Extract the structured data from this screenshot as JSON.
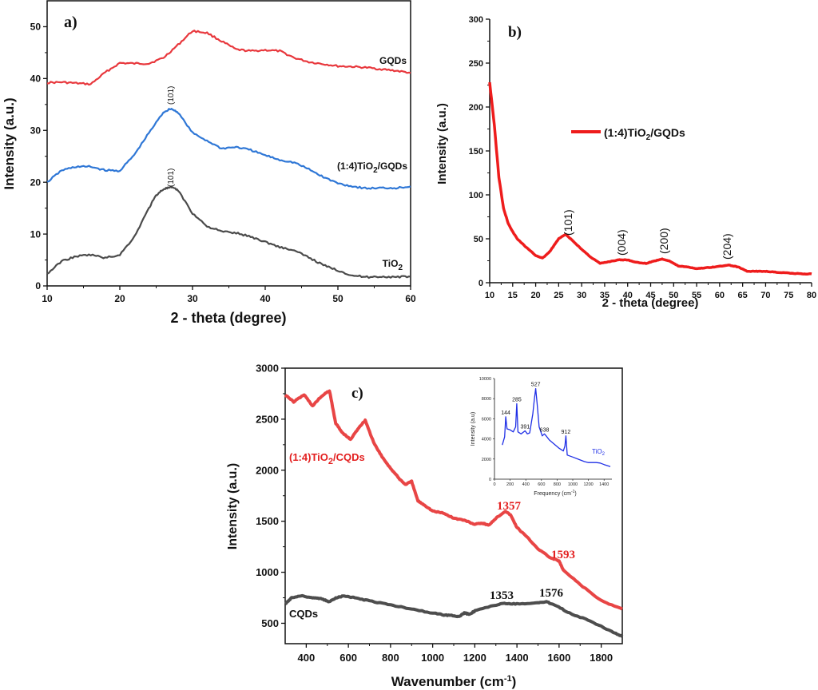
{
  "chart_data": [
    {
      "type": "line",
      "panel_label": "a)",
      "xlabel": "2 - theta (degree)",
      "ylabel": "Intensity (a.u.)",
      "xlim": [
        10,
        60
      ],
      "ylim": [
        0,
        55
      ],
      "xticks": [
        10,
        20,
        30,
        40,
        50,
        60
      ],
      "yticks": [
        0,
        10,
        20,
        30,
        40,
        50
      ],
      "grid": false,
      "annotations": [
        {
          "text": "(101)",
          "x": 27,
          "y": 35,
          "rotated": true
        },
        {
          "text": "(101)",
          "x": 27,
          "y": 20,
          "rotated": true
        }
      ],
      "series": [
        {
          "name": "GQDs",
          "color": "#e8383d",
          "x": [
            10,
            12,
            14,
            16,
            18,
            20,
            22,
            24,
            26,
            28,
            30,
            32,
            34,
            36,
            38,
            40,
            42,
            44,
            46,
            48,
            50,
            52,
            54,
            56,
            58,
            60
          ],
          "y": [
            39.2,
            39.3,
            39.1,
            38.9,
            41.2,
            43,
            42.9,
            42.9,
            44,
            46.5,
            49.2,
            48.8,
            47.2,
            45.6,
            45.3,
            45.5,
            45.3,
            44,
            43.2,
            42.8,
            42.4,
            42.3,
            42.1,
            41.8,
            41.5,
            41.1
          ]
        },
        {
          "name": "(1:4)TiO2/GQDs",
          "color": "#2f77d6",
          "x": [
            10,
            12,
            14,
            16,
            18,
            20,
            22,
            24,
            26,
            27,
            28,
            30,
            32,
            34,
            36,
            38,
            40,
            42,
            44,
            46,
            48,
            50,
            52,
            54,
            56,
            58,
            60
          ],
          "y": [
            20,
            22.3,
            23,
            23,
            22.3,
            22.2,
            25.3,
            29.5,
            33.5,
            34.2,
            33.5,
            29.5,
            28,
            26.5,
            26.8,
            26.2,
            25.2,
            24.3,
            23.8,
            22.5,
            21,
            19.8,
            19.2,
            18.8,
            18.9,
            18.9,
            19.2
          ]
        },
        {
          "name": "TiO2",
          "color": "#4a4a4a",
          "x": [
            10,
            12,
            14,
            16,
            18,
            20,
            22,
            24,
            25,
            26,
            27,
            28,
            30,
            32,
            34,
            36,
            38,
            40,
            42,
            44,
            46,
            48,
            50,
            52,
            54,
            56,
            58,
            60
          ],
          "y": [
            2.3,
            4.8,
            5.7,
            6,
            5.4,
            6,
            9.5,
            15,
            17.5,
            18.7,
            19,
            18.5,
            14,
            11.5,
            10.5,
            10.2,
            9.5,
            8.5,
            7.5,
            6.8,
            5.5,
            4,
            3,
            2,
            1.7,
            1.8,
            1.7,
            1.8
          ]
        }
      ],
      "series_labels": [
        "GQDs",
        "(1:4)TiO2/GQDs",
        "TiO2"
      ]
    },
    {
      "type": "line",
      "panel_label": "b)",
      "xlabel": "2 - theta (degree)",
      "ylabel": "Intensity (a.u.)",
      "xlim": [
        10,
        80
      ],
      "ylim": [
        0,
        300
      ],
      "xticks": [
        10,
        15,
        20,
        25,
        30,
        35,
        40,
        45,
        50,
        55,
        60,
        65,
        70,
        75,
        80
      ],
      "yticks": [
        0,
        50,
        100,
        150,
        200,
        250,
        300
      ],
      "grid": false,
      "legend": {
        "position": "center-right",
        "entries": [
          "(1:4)TiO2/GQDs"
        ]
      },
      "annotations": [
        {
          "text": "(101)",
          "x": 26.5,
          "y": 55
        },
        {
          "text": "(004)",
          "x": 38,
          "y": 27
        },
        {
          "text": "(200)",
          "x": 47.5,
          "y": 27
        },
        {
          "text": "(204)",
          "x": 61,
          "y": 20
        }
      ],
      "series": [
        {
          "name": "(1:4)TiO2/GQDs",
          "color": "#ee1c1c",
          "x": [
            10,
            11,
            12,
            13,
            14,
            15,
            16,
            18,
            20,
            21.5,
            23,
            25,
            26.5,
            28,
            30,
            32,
            34,
            36,
            38,
            40,
            42,
            44,
            46,
            47.5,
            49,
            51,
            53,
            55,
            57,
            59,
            62,
            64,
            66,
            68,
            70,
            72,
            75,
            78,
            80
          ],
          "y": [
            228,
            180,
            120,
            85,
            68,
            58,
            50,
            40,
            31,
            28,
            35,
            50,
            55,
            48,
            38,
            29,
            22,
            24,
            26,
            26,
            23,
            22,
            25,
            27,
            25,
            19,
            18,
            16,
            17,
            18,
            20,
            18,
            13,
            13,
            13,
            12,
            11,
            10,
            10
          ]
        }
      ]
    },
    {
      "type": "line",
      "panel_label": "c)",
      "xlabel": "Wavenumber (cm⁻¹)",
      "ylabel": "Intensity (a.u.)",
      "xlim": [
        300,
        1900
      ],
      "ylim": [
        300,
        3000
      ],
      "xticks": [
        400,
        600,
        800,
        1000,
        1200,
        1400,
        1600,
        1800
      ],
      "yticks": [
        500,
        1000,
        1500,
        2000,
        2500,
        3000
      ],
      "grid": false,
      "annotations": [
        {
          "text": "1357",
          "x": 1357,
          "y": 1640,
          "color": "#e32020"
        },
        {
          "text": "1593",
          "x": 1593,
          "y": 1180,
          "color": "#e32020"
        },
        {
          "text": "1353",
          "x": 1353,
          "y": 780,
          "color": "#111111"
        },
        {
          "text": "1576",
          "x": 1576,
          "y": 790,
          "color": "#111111"
        }
      ],
      "series": [
        {
          "name": "(1:4)TiO2/CQDs",
          "color": "#e84545",
          "x": [
            300,
            340,
            390,
            430,
            470,
            510,
            540,
            570,
            610,
            650,
            680,
            720,
            760,
            800,
            840,
            870,
            900,
            930,
            960,
            1000,
            1050,
            1100,
            1150,
            1200,
            1240,
            1265,
            1300,
            1345,
            1370,
            1400,
            1450,
            1500,
            1560,
            1600,
            1620,
            1700,
            1800,
            1900
          ],
          "y": [
            2740,
            2670,
            2740,
            2630,
            2720,
            2780,
            2460,
            2370,
            2300,
            2420,
            2490,
            2270,
            2130,
            2020,
            1920,
            1860,
            1890,
            1700,
            1660,
            1600,
            1580,
            1530,
            1510,
            1470,
            1480,
            1460,
            1530,
            1600,
            1560,
            1440,
            1340,
            1230,
            1140,
            1110,
            1020,
            880,
            720,
            640
          ]
        },
        {
          "name": "CQDs",
          "color": "#4d4d4d",
          "x": [
            300,
            330,
            380,
            430,
            470,
            510,
            540,
            580,
            630,
            700,
            800,
            900,
            1000,
            1060,
            1100,
            1125,
            1150,
            1175,
            1200,
            1300,
            1340,
            1400,
            1500,
            1540,
            1580,
            1650,
            1750,
            1850,
            1900
          ],
          "y": [
            690,
            750,
            770,
            750,
            740,
            710,
            750,
            770,
            750,
            720,
            680,
            640,
            600,
            580,
            575,
            565,
            600,
            590,
            620,
            680,
            695,
            690,
            700,
            710,
            680,
            600,
            520,
            420,
            370
          ]
        }
      ],
      "series_labels": [
        "(1:4)TiO2/CQDs",
        "CQDs"
      ],
      "inset": {
        "xlabel": "Frequency (cm⁻¹)",
        "ylabel": "Intensity (a.u)",
        "xlim": [
          0,
          1500
        ],
        "ylim": [
          0,
          10000
        ],
        "xticks": [
          0,
          200,
          400,
          600,
          800,
          1000,
          1200,
          1400
        ],
        "yticks": [
          0,
          2000,
          4000,
          6000,
          8000,
          10000
        ],
        "label": "TiO2",
        "peak_labels": [
          {
            "text": "144",
            "x": 144,
            "y": 6200
          },
          {
            "text": "285",
            "x": 285,
            "y": 7500
          },
          {
            "text": "391",
            "x": 391,
            "y": 4800
          },
          {
            "text": "527",
            "x": 527,
            "y": 9000
          },
          {
            "text": "638",
            "x": 638,
            "y": 4500
          },
          {
            "text": "912",
            "x": 912,
            "y": 4300
          }
        ],
        "series": [
          {
            "name": "TiO2",
            "color": "#1f2fe6",
            "x": [
              100,
              130,
              144,
              160,
              200,
              240,
              270,
              285,
              300,
              340,
              391,
              420,
              450,
              490,
              510,
              527,
              545,
              570,
              610,
              638,
              660,
              700,
              760,
              820,
              880,
              900,
              912,
              930,
              1000,
              1100,
              1150,
              1200,
              1300,
              1350,
              1400,
              1480
            ],
            "y": [
              3400,
              4200,
              6200,
              5000,
              4900,
              4700,
              5200,
              7500,
              4700,
              4500,
              4800,
              4500,
              4600,
              6500,
              8000,
              9000,
              7500,
              5200,
              4300,
              4500,
              4300,
              3900,
              3500,
              3100,
              2800,
              3300,
              4300,
              2400,
              2200,
              1900,
              1750,
              1650,
              1650,
              1600,
              1450,
              1250
            ]
          }
        ]
      }
    }
  ],
  "labels": {
    "a_panel": "a)",
    "a_ylabel": "Intensity (a.u.)",
    "a_xlabel": "2 - theta (degree)",
    "a_gqds": "GQDs",
    "a_composite_main": "(1:4)TiO",
    "a_composite_sub": "2",
    "a_composite_tail": "/GQDs",
    "a_tio2_main": "TiO",
    "a_tio2_sub": "2",
    "a_peak": "(101)",
    "b_panel": "b)",
    "b_ylabel": "Intensity (a.u.)",
    "b_xlabel": "2 - theta (degree)",
    "b_legend_main": "(1:4)TiO",
    "b_legend_sub": "2",
    "b_legend_tail": "/GQDs",
    "b_p101": "(101)",
    "b_p004": "(004)",
    "b_p200": "(200)",
    "b_p204": "(204)",
    "c_panel": "c)",
    "c_ylabel": "Intensity (a.u.)",
    "c_xlabel_main": "Wavenumber (cm",
    "c_xlabel_sup": "-1",
    "c_xlabel_tail": ")",
    "c_composite_main": "(1:4)TiO",
    "c_composite_sub": "2",
    "c_composite_tail": "/CQDs",
    "c_cqds": "CQDs",
    "c_1357": "1357",
    "c_1593": "1593",
    "c_1353": "1353",
    "c_1576": "1576",
    "inset_ylabel": "Intensity (a.u)",
    "inset_xlabel_main": "Frequency (cm",
    "inset_xlabel_sup": "-1",
    "inset_xlabel_tail": ")",
    "inset_tio2_main": "TiO",
    "inset_tio2_sub": "2"
  }
}
